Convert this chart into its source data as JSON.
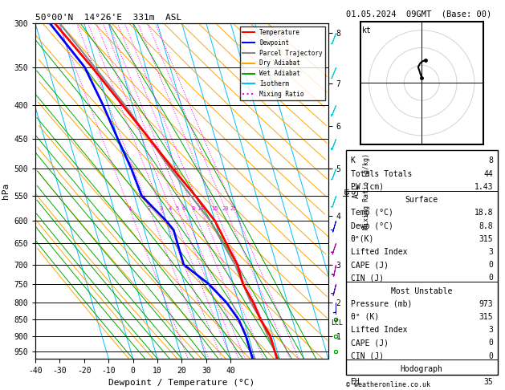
{
  "title_left": "50°00'N  14°26'E  331m  ASL",
  "title_right": "01.05.2024  09GMT  (Base: 00)",
  "xlabel": "Dewpoint / Temperature (°C)",
  "ylabel_left": "hPa",
  "isotherm_color": "#00bfff",
  "dry_adiabat_color": "#ffa500",
  "wet_adiabat_color": "#00aa00",
  "mixing_ratio_color": "#ff00ff",
  "temp_color": "#ff0000",
  "dewpoint_color": "#0000ff",
  "parcel_color": "#888888",
  "legend_items": [
    {
      "label": "Temperature",
      "color": "#ff0000",
      "ls": "-"
    },
    {
      "label": "Dewpoint",
      "color": "#0000ff",
      "ls": "-"
    },
    {
      "label": "Parcel Trajectory",
      "color": "#888888",
      "ls": "-"
    },
    {
      "label": "Dry Adiabat",
      "color": "#ffa500",
      "ls": "-"
    },
    {
      "label": "Wet Adiabat",
      "color": "#00aa00",
      "ls": "-"
    },
    {
      "label": "Isotherm",
      "color": "#00bfff",
      "ls": "-"
    },
    {
      "label": "Mixing Ratio",
      "color": "#ff00ff",
      "ls": ":"
    }
  ],
  "copyright": "© weatheronline.co.uk",
  "temp_profile": {
    "pressure": [
      300,
      350,
      400,
      450,
      500,
      550,
      600,
      650,
      700,
      750,
      800,
      850,
      900,
      950,
      973
    ],
    "temp": [
      -32,
      -22,
      -14,
      -7,
      -1,
      5,
      10,
      12,
      14,
      14,
      16,
      17,
      19,
      19,
      19
    ]
  },
  "dewp_profile": {
    "pressure": [
      300,
      350,
      400,
      450,
      500,
      550,
      600,
      620,
      650,
      700,
      750,
      800,
      850,
      900,
      950,
      973
    ],
    "temp": [
      -34,
      -25,
      -22,
      -20,
      -18,
      -17,
      -10,
      -8,
      -8,
      -8,
      0,
      5,
      8,
      9,
      9,
      9
    ]
  },
  "parcel_profile": {
    "pressure": [
      300,
      400,
      500,
      600,
      700,
      800,
      850,
      900,
      950,
      973
    ],
    "temp": [
      -30,
      -13,
      -2,
      8,
      13,
      15,
      17,
      18,
      19,
      19
    ]
  }
}
